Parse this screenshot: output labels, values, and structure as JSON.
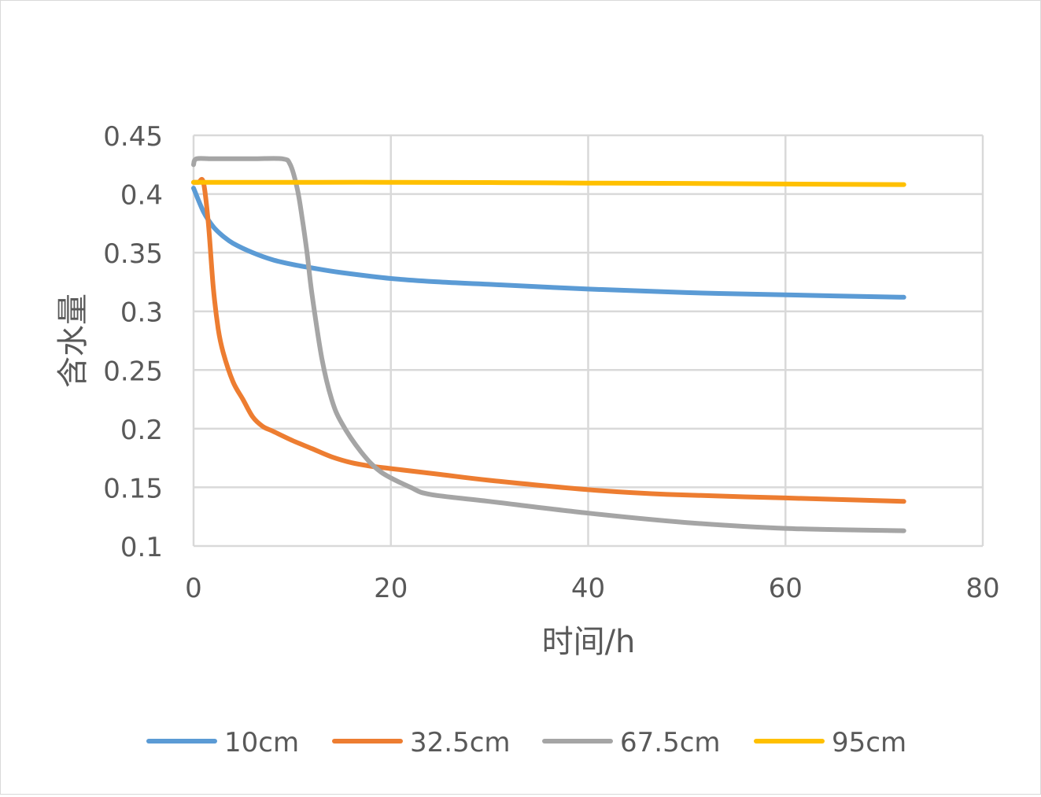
{
  "chart_data": {
    "type": "line",
    "title": "",
    "xlabel": "时间/h",
    "ylabel": "含水量",
    "xlim": [
      0,
      80
    ],
    "ylim": [
      0.1,
      0.45
    ],
    "xticks": [
      0,
      20,
      40,
      60,
      80
    ],
    "yticks": [
      0.1,
      0.15,
      0.2,
      0.25,
      0.3,
      0.35,
      0.4,
      0.45
    ],
    "xtick_labels": [
      "0",
      "20",
      "40",
      "60",
      "80"
    ],
    "ytick_labels": [
      "0.1",
      "0.15",
      "0.2",
      "0.25",
      "0.3",
      "0.35",
      "0.4",
      "0.45"
    ],
    "grid": true,
    "legend_position": "bottom",
    "series": [
      {
        "name": "10cm",
        "color": "#5b9bd5",
        "x": [
          0,
          1,
          2,
          3,
          4,
          6,
          8,
          10,
          12,
          15,
          20,
          25,
          30,
          40,
          50,
          60,
          72
        ],
        "y": [
          0.405,
          0.385,
          0.372,
          0.364,
          0.358,
          0.35,
          0.344,
          0.34,
          0.337,
          0.333,
          0.328,
          0.325,
          0.323,
          0.319,
          0.316,
          0.314,
          0.312
        ]
      },
      {
        "name": "32.5cm",
        "color": "#ed7d31",
        "x": [
          0,
          0.5,
          1,
          1.5,
          2,
          2.5,
          3,
          4,
          5,
          6,
          7,
          8,
          10,
          12,
          14,
          16,
          18,
          20,
          25,
          30,
          40,
          48,
          60,
          72
        ],
        "y": [
          0.41,
          0.41,
          0.41,
          0.375,
          0.32,
          0.285,
          0.265,
          0.24,
          0.225,
          0.21,
          0.202,
          0.198,
          0.19,
          0.183,
          0.176,
          0.171,
          0.168,
          0.166,
          0.161,
          0.156,
          0.148,
          0.144,
          0.141,
          0.138
        ]
      },
      {
        "name": "67.5cm",
        "color": "#a5a5a5",
        "x": [
          0,
          0.3,
          2,
          6,
          9,
          9.8,
          10.5,
          11,
          11.5,
          12,
          13,
          14,
          15,
          17,
          19,
          22,
          24,
          30,
          40,
          50,
          60,
          72
        ],
        "y": [
          0.425,
          0.43,
          0.43,
          0.43,
          0.43,
          0.425,
          0.405,
          0.38,
          0.35,
          0.315,
          0.26,
          0.225,
          0.205,
          0.18,
          0.163,
          0.15,
          0.144,
          0.138,
          0.128,
          0.12,
          0.115,
          0.113
        ]
      },
      {
        "name": "95cm",
        "color": "#ffc000",
        "x": [
          0,
          10,
          20,
          30,
          40,
          50,
          60,
          72
        ],
        "y": [
          0.41,
          0.41,
          0.41,
          0.4098,
          0.4093,
          0.409,
          0.4085,
          0.408
        ]
      }
    ]
  }
}
